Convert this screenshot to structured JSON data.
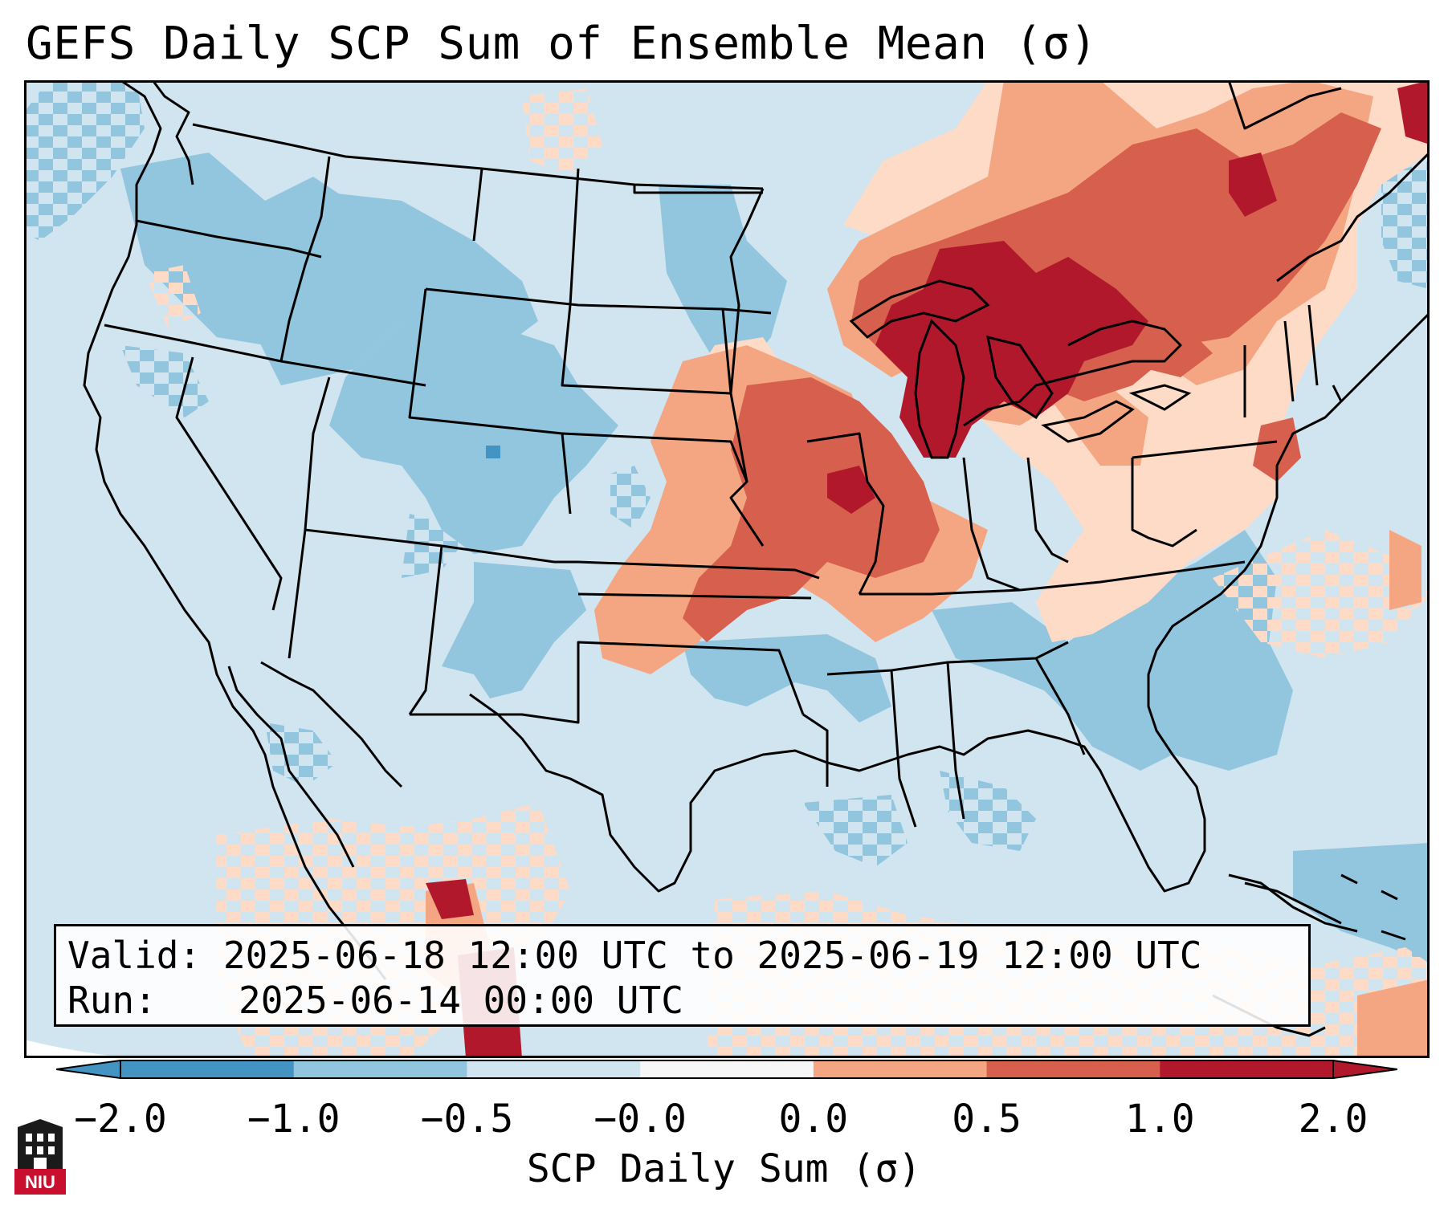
{
  "title": "GEFS Daily SCP Sum of Ensemble Mean (σ)",
  "info": {
    "valid_label": "Valid:",
    "valid_range": "2025-06-18 12:00 UTC to 2025-06-19 12:00 UTC",
    "run_label": "Run:",
    "run_time": "2025-06-14 00:00 UTC"
  },
  "colorbar": {
    "label": "SCP Daily Sum (σ)",
    "ticks": [
      "−2.0",
      "−1.0",
      "−0.5",
      "−0.0",
      "0.0",
      "0.5",
      "1.0",
      "2.0"
    ],
    "colors": [
      "#4393c3",
      "#92c5de",
      "#d1e5f0",
      "#f7f7f7",
      "#fddbc7",
      "#f4a582",
      "#d6604d",
      "#b2182b"
    ],
    "extend": "both"
  },
  "logo": {
    "text": "NIU"
  }
}
